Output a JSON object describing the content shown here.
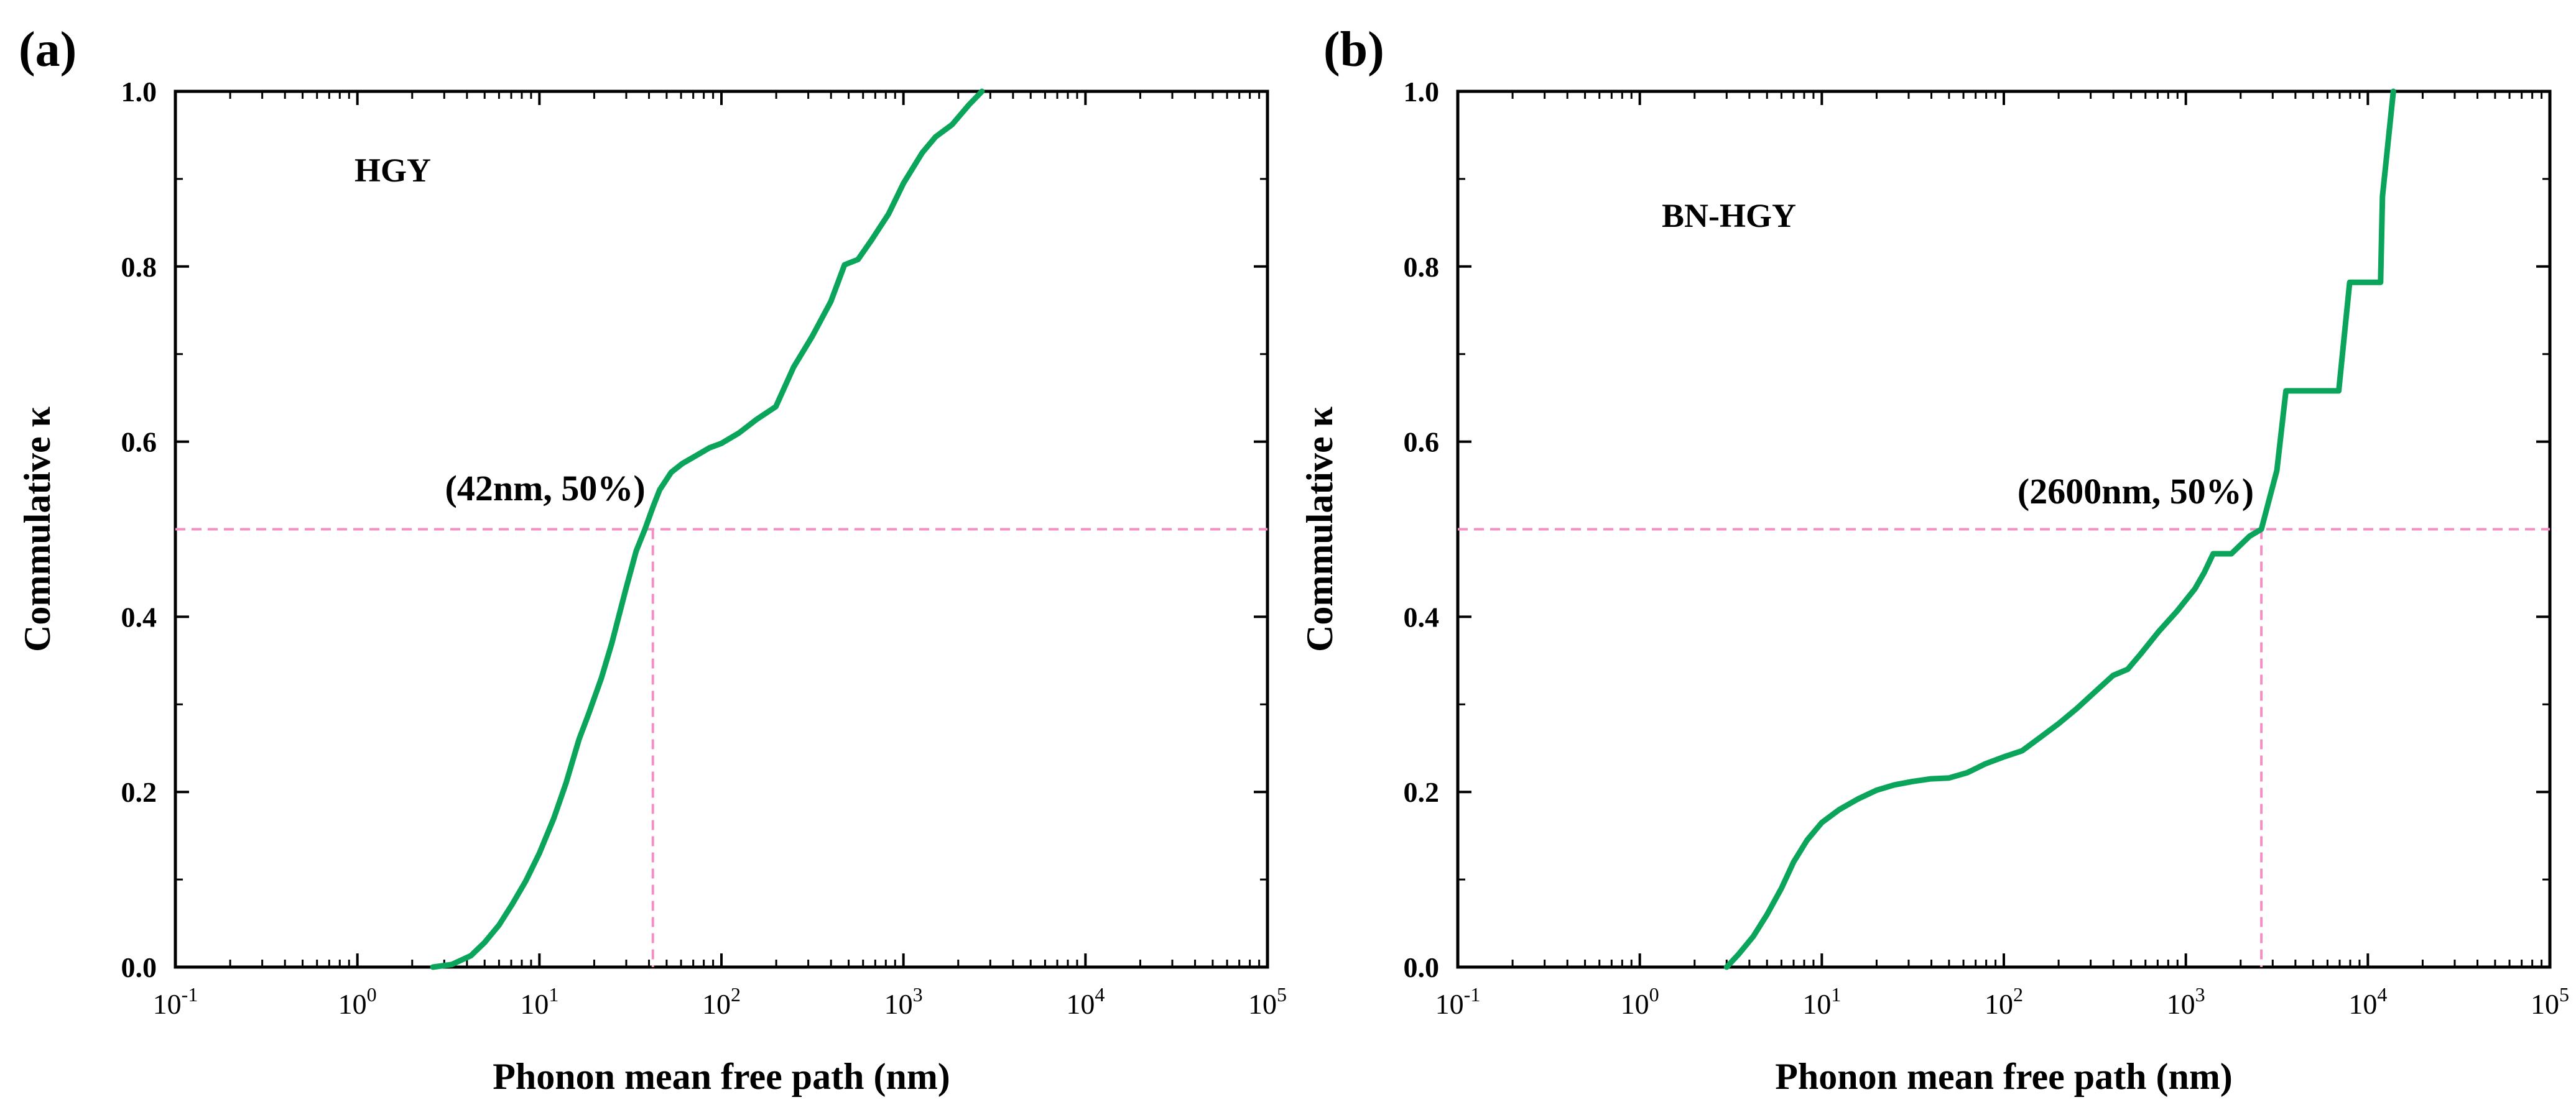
{
  "figure": {
    "panels": [
      {
        "label": "(a)"
      },
      {
        "label": "(b)"
      }
    ]
  },
  "chart_data": [
    {
      "type": "line",
      "panel_label": "(a)",
      "title": "",
      "inset_label": "HGY",
      "xlabel": "Phonon mean free path (nm)",
      "ylabel": "Commulative κ",
      "xscale": "log",
      "xlim": [
        0.1,
        100000
      ],
      "ylim": [
        0,
        1.0
      ],
      "x_ticks": [
        {
          "base": "10",
          "exp": "-1"
        },
        {
          "base": "10",
          "exp": "0"
        },
        {
          "base": "10",
          "exp": "1"
        },
        {
          "base": "10",
          "exp": "2"
        },
        {
          "base": "10",
          "exp": "3"
        },
        {
          "base": "10",
          "exp": "4"
        },
        {
          "base": "10",
          "exp": "5"
        }
      ],
      "y_ticks": [
        "0.0",
        "0.2",
        "0.4",
        "0.6",
        "0.8",
        "1.0"
      ],
      "grid": false,
      "line_color": "#0aa55a",
      "guide_color": "#f28fc4",
      "series": [
        {
          "x": [
            2.6,
            3.3,
            4.2,
            5.0,
            6.0,
            7.1,
            8.4,
            10,
            12,
            14,
            16.5,
            18.7,
            21.9,
            25,
            29.7,
            34,
            38,
            42,
            45.8,
            53,
            61,
            74,
            86,
            100,
            125,
            155,
            199,
            249,
            315,
            399,
            475,
            563,
            667,
            828,
            1000,
            1270,
            1500,
            1850,
            2300,
            2700
          ],
          "y": [
            0.0,
            0.003,
            0.013,
            0.028,
            0.048,
            0.072,
            0.098,
            0.13,
            0.17,
            0.21,
            0.26,
            0.29,
            0.33,
            0.37,
            0.43,
            0.475,
            0.5,
            0.525,
            0.545,
            0.565,
            0.575,
            0.585,
            0.593,
            0.598,
            0.61,
            0.625,
            0.64,
            0.685,
            0.72,
            0.76,
            0.802,
            0.808,
            0.83,
            0.86,
            0.895,
            0.93,
            0.948,
            0.962,
            0.985,
            1.0
          ]
        }
      ],
      "annotation": {
        "text": "(42nm, 50%)",
        "x": 42,
        "y": 0.5
      }
    },
    {
      "type": "line",
      "panel_label": "(b)",
      "title": "",
      "inset_label": "BN-HGY",
      "xlabel": "Phonon mean free path (nm)",
      "ylabel": "Commulative κ",
      "xscale": "log",
      "xlim": [
        0.1,
        100000
      ],
      "ylim": [
        0,
        1.0
      ],
      "x_ticks": [
        {
          "base": "10",
          "exp": "-1"
        },
        {
          "base": "10",
          "exp": "0"
        },
        {
          "base": "10",
          "exp": "1"
        },
        {
          "base": "10",
          "exp": "2"
        },
        {
          "base": "10",
          "exp": "3"
        },
        {
          "base": "10",
          "exp": "4"
        },
        {
          "base": "10",
          "exp": "5"
        }
      ],
      "y_ticks": [
        "0.0",
        "0.2",
        "0.4",
        "0.6",
        "0.8",
        "1.0"
      ],
      "grid": false,
      "line_color": "#0aa55a",
      "guide_color": "#f28fc4",
      "series": [
        {
          "x": [
            3.0,
            3.5,
            4.2,
            5.0,
            6.0,
            7.0,
            8.3,
            10,
            12.5,
            15.8,
            20,
            25,
            31.6,
            39.8,
            50,
            63,
            79,
            100,
            126,
            158,
            200,
            251,
            316,
            398,
            479,
            562,
            708,
            891,
            1122,
            1259,
            1413,
            1778,
            2239,
            2600,
            3162,
            3548,
            6918,
            7943,
            11749,
            12023,
            13804
          ],
          "y": [
            0.0,
            0.015,
            0.035,
            0.06,
            0.09,
            0.12,
            0.145,
            0.165,
            0.18,
            0.192,
            0.202,
            0.208,
            0.212,
            0.215,
            0.216,
            0.222,
            0.232,
            0.24,
            0.247,
            0.262,
            0.278,
            0.295,
            0.314,
            0.333,
            0.34,
            0.357,
            0.383,
            0.406,
            0.432,
            0.45,
            0.472,
            0.472,
            0.492,
            0.5,
            0.567,
            0.658,
            0.658,
            0.782,
            0.782,
            0.88,
            1.0
          ]
        }
      ],
      "annotation": {
        "text": "(2600nm, 50%)",
        "x": 2600,
        "y": 0.5
      }
    }
  ]
}
